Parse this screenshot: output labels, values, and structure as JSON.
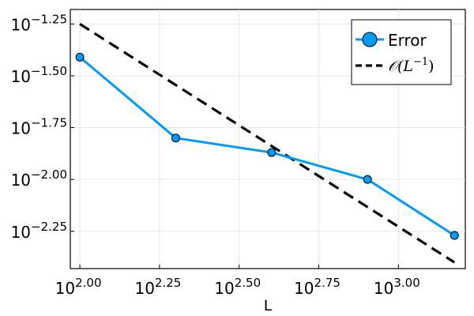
{
  "chart_data": {
    "type": "line",
    "x_scale": "log10",
    "y_scale": "log10",
    "xlabel": "L",
    "ylabel": "",
    "xlim": [
      1.97,
      3.21
    ],
    "ylim": [
      -2.43,
      -1.18
    ],
    "x_ticks": [
      2.0,
      2.25,
      2.5,
      2.75,
      3.0
    ],
    "x_tick_labels": [
      "2.00",
      "2.25",
      "2.50",
      "2.75",
      "3.00"
    ],
    "y_ticks": [
      -2.25,
      -2.0,
      -1.75,
      -1.5,
      -1.25
    ],
    "y_tick_labels": [
      "−2.25",
      "−2.00",
      "−1.75",
      "−1.50",
      "−1.25"
    ],
    "tick_base": "10",
    "grid": true,
    "legend_position": "top-right",
    "series": [
      {
        "name": "Error",
        "style": "solid-line-with-circle-markers",
        "color": "#009af9",
        "x": [
          2.0,
          2.301,
          2.602,
          2.903,
          3.176
        ],
        "y": [
          -1.41,
          -1.8,
          -1.87,
          -2.0,
          -2.27
        ]
      },
      {
        "name": "𝒪(L⁻¹)",
        "legend_main": "𝒪(L",
        "legend_sup": "−1",
        "legend_close": ")",
        "style": "dashed",
        "color": "#000000",
        "x": [
          2.0,
          3.176
        ],
        "y": [
          -1.25,
          -2.4
        ]
      }
    ]
  }
}
